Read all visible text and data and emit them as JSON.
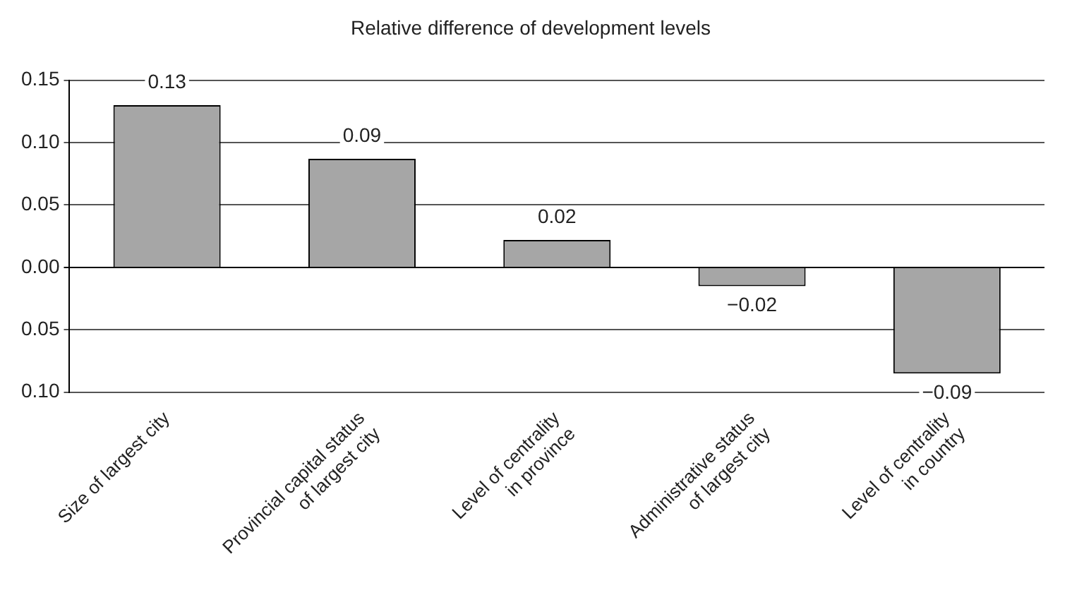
{
  "chart_data": {
    "type": "bar",
    "title": "Relative difference of development levels",
    "categories": [
      "Size of largest city",
      "Provincial capital status\nof largest city",
      "Level of centrality\nin province",
      "Administrative status\nof largest city",
      "Level of centrality\nin country"
    ],
    "values": [
      0.13,
      0.087,
      0.022,
      -0.015,
      -0.085
    ],
    "value_labels": [
      "0.13",
      "0.09",
      "0.02",
      "−0.02",
      "−0.09"
    ],
    "color": "#a6a6a6",
    "ylim": [
      -0.1,
      0.15
    ],
    "yticks": [
      {
        "value": -0.1,
        "label": "0.10"
      },
      {
        "value": -0.05,
        "label": "0.05"
      },
      {
        "value": 0,
        "label": "0.00"
      },
      {
        "value": 0.05,
        "label": "0.05"
      },
      {
        "value": 0.1,
        "label": "0.10"
      },
      {
        "value": 0.15,
        "label": "0.15"
      }
    ],
    "grid": "y",
    "legend": false
  }
}
